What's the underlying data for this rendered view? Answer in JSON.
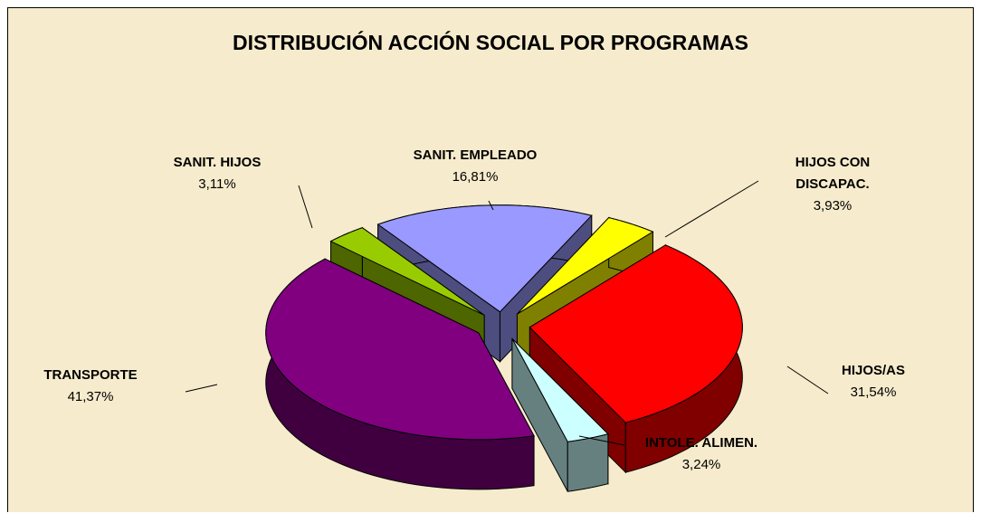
{
  "chart_data": {
    "type": "pie3d",
    "title": "DISTRIBUCIÓN ACCIÓN SOCIAL POR PROGRAMAS",
    "categories": [
      "SANIT. EMPLEADO",
      "HIJOS CON DISCAPAC.",
      "HIJOS/AS",
      "INTOLE. ALIMEN.",
      "TRANSPORTE",
      "SANIT. HIJOS"
    ],
    "values": [
      16.81,
      3.93,
      31.54,
      3.24,
      41.37,
      3.11
    ],
    "value_labels": [
      "16,81%",
      "3,93%",
      "31,54%",
      "3,24%",
      "41,37%",
      "3,11%"
    ],
    "colors": [
      "#9999ff",
      "#ffff00",
      "#ff0000",
      "#ccffff",
      "#800080",
      "#99cc00"
    ]
  }
}
